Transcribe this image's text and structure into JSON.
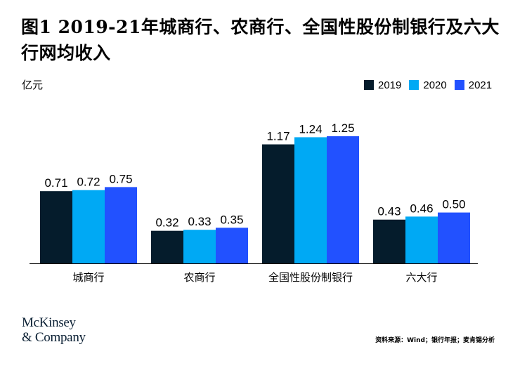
{
  "header": {
    "title": "图1 2019-21年城商行、农商行、全国性股份制银行及六大行网均收入"
  },
  "chart_data": {
    "type": "bar",
    "title": "图1 2019-21年城商行、农商行、全国性股份制银行及六大行网均收入",
    "ylabel": "亿元",
    "xlabel": "",
    "categories": [
      "城商行",
      "农商行",
      "全国性股份制银行",
      "六大行"
    ],
    "series": [
      {
        "name": "2019",
        "color": "#051c2c",
        "values": [
          0.71,
          0.32,
          1.17,
          0.43
        ],
        "labels": [
          "0.71",
          "0.32",
          "1.17",
          "0.43"
        ]
      },
      {
        "name": "2020",
        "color": "#00a9f4",
        "values": [
          0.72,
          0.33,
          1.24,
          0.46
        ],
        "labels": [
          "0.72",
          "0.33",
          "1.24",
          "0.46"
        ]
      },
      {
        "name": "2021",
        "color": "#2251ff",
        "values": [
          0.75,
          0.35,
          1.25,
          0.5
        ],
        "labels": [
          "0.75",
          "0.35",
          "1.25",
          "0.50"
        ]
      }
    ],
    "ylim": [
      0,
      1.45
    ],
    "grid": false,
    "legend": "top-right"
  },
  "footer": {
    "logo_line1": "McKinsey",
    "logo_line2": "& Company",
    "source": "资料来源：Wind；银行年报；麦肯锡分析"
  }
}
